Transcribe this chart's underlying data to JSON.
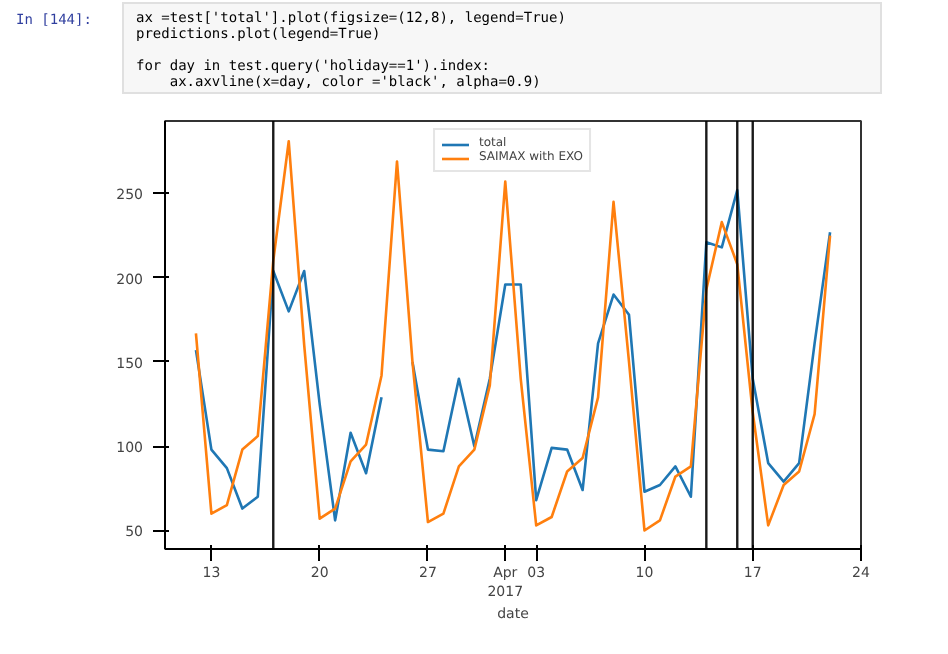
{
  "chart_data": {
    "type": "line",
    "annotations": [
      "In [144]:",
      "ax =test['total'].plot(figsize=(12,8), legend=True)\npredictions.plot(legend=True)\n\nfor day in test.query('holiday==1').index:\n    ax.axvline(x=day, color ='black', alpha=0.9)"
    ],
    "xlabel": "date",
    "x": [
      "2017-03-12",
      "2017-03-13",
      "2017-03-14",
      "2017-03-15",
      "2017-03-16",
      "2017-03-17",
      "2017-03-18",
      "2017-03-19",
      "2017-03-20",
      "2017-03-21",
      "2017-03-22",
      "2017-03-23",
      "2017-03-24",
      "2017-03-25",
      "2017-03-26",
      "2017-03-27",
      "2017-03-28",
      "2017-03-29",
      "2017-03-30",
      "2017-03-31",
      "2017-04-01",
      "2017-04-02",
      "2017-04-03",
      "2017-04-04",
      "2017-04-05",
      "2017-04-06",
      "2017-04-07",
      "2017-04-08",
      "2017-04-09",
      "2017-04-10",
      "2017-04-11",
      "2017-04-12",
      "2017-04-13",
      "2017-04-14",
      "2017-04-15",
      "2017-04-16",
      "2017-04-17",
      "2017-04-18",
      "2017-04-19",
      "2017-04-20",
      "2017-04-21",
      "2017-04-22"
    ],
    "series": [
      {
        "name": "total",
        "color": "#1f77b4",
        "values": [
          157,
          98,
          87,
          63,
          70,
          204,
          180,
          204,
          125,
          56,
          108,
          84,
          129,
          null,
          150,
          98,
          97,
          140,
          100,
          140,
          196,
          196,
          68,
          99,
          98,
          74,
          161,
          190,
          178,
          73,
          77,
          88,
          70,
          221,
          218,
          252,
          140,
          90,
          79,
          90,
          161,
          227
        ]
      },
      {
        "name": "SAIMAX with EXO",
        "color": "#ff7f0e",
        "values": [
          167,
          60,
          65,
          98,
          106,
          210,
          281,
          160,
          57,
          63,
          91,
          101,
          142,
          269,
          150,
          55,
          60,
          88,
          98,
          136,
          257,
          140,
          53,
          58,
          85,
          93,
          129,
          245,
          150,
          50,
          56,
          82,
          88,
          193,
          233,
          208,
          120,
          53,
          77,
          85,
          119,
          225
        ]
      }
    ],
    "xlim": [
      "2017-03-10",
      "2017-04-24"
    ],
    "xticks": [
      {
        "value": "2017-03-13",
        "label": "13"
      },
      {
        "value": "2017-03-20",
        "label": "20"
      },
      {
        "value": "2017-03-27",
        "label": "27"
      },
      {
        "value": "2017-04-01",
        "label": "Apr\n2017"
      },
      {
        "value": "2017-04-03",
        "label": "03"
      },
      {
        "value": "2017-04-10",
        "label": "10"
      },
      {
        "value": "2017-04-17",
        "label": "17"
      },
      {
        "value": "2017-04-24",
        "label": "24"
      }
    ],
    "ylim": [
      39,
      293
    ],
    "yticks": [
      50,
      100,
      150,
      200,
      250
    ],
    "ref_lines": [
      {
        "axis": "x",
        "value": "2017-03-17",
        "color": "#000000"
      },
      {
        "axis": "x",
        "value": "2017-04-14",
        "color": "#000000"
      },
      {
        "axis": "x",
        "value": "2017-04-16",
        "color": "#000000"
      },
      {
        "axis": "x",
        "value": "2017-04-17",
        "color": "#000000"
      }
    ],
    "legend": "top",
    "grid": false
  }
}
